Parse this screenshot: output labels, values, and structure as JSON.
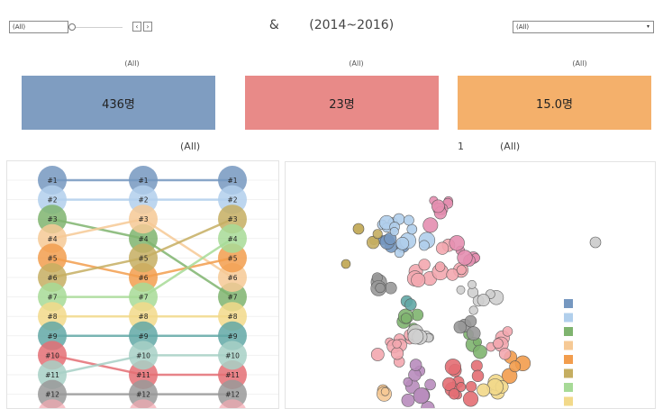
{
  "filters": {
    "left_filter_value": "(All)",
    "prev_icon": "chevron-left-icon",
    "next_icon": "chevron-right-icon",
    "dropdown_value": "(All)",
    "dropdown_arrow": "▾"
  },
  "header": {
    "title_left": "&",
    "title_right": "(2014~2016)"
  },
  "kpis": [
    {
      "label": "(All)",
      "value": "436명",
      "color": "#7f9dc1"
    },
    {
      "label": "(All)",
      "value": "23명",
      "color": "#e88a88"
    },
    {
      "label": "(All)",
      "value": "15.0명",
      "color": "#f4b06b"
    }
  ],
  "subheaders": {
    "bump_label": "(All)",
    "bubble_number": "1",
    "bubble_label": "(All)"
  },
  "palette": [
    "#7698c0",
    "#b1cfec",
    "#7fb46f",
    "#f6c995",
    "#f29d4d",
    "#c5ae61",
    "#a7da97",
    "#f2d98a",
    "#62a8a6",
    "#e46e74",
    "#a7d0c6",
    "#999999",
    "#f3a8b0"
  ],
  "chart_data": [
    {
      "type": "bump",
      "columns": 3,
      "rank_labels": [
        "#1",
        "#2",
        "#3",
        "#4",
        "#5",
        "#6",
        "#7",
        "#8",
        "#9",
        "#10",
        "#11",
        "#12"
      ],
      "series": [
        {
          "ranks": [
            1,
            1,
            1
          ]
        },
        {
          "ranks": [
            2,
            2,
            2
          ]
        },
        {
          "ranks": [
            3,
            4,
            7
          ]
        },
        {
          "ranks": [
            4,
            3,
            6
          ]
        },
        {
          "ranks": [
            5,
            6,
            5
          ]
        },
        {
          "ranks": [
            6,
            5,
            3
          ]
        },
        {
          "ranks": [
            7,
            7,
            4
          ]
        },
        {
          "ranks": [
            8,
            8,
            8
          ]
        },
        {
          "ranks": [
            9,
            9,
            9
          ]
        },
        {
          "ranks": [
            10,
            11,
            11
          ]
        },
        {
          "ranks": [
            11,
            10,
            10
          ]
        },
        {
          "ranks": [
            12,
            12,
            12
          ]
        }
      ]
    },
    {
      "type": "scatter",
      "clusters": [
        {
          "color": "#7698c0",
          "x": 433,
          "y": 265,
          "n": 5
        },
        {
          "color": "#b1cfec",
          "x": 440,
          "y": 255,
          "n": 14
        },
        {
          "color": "#7fb46f",
          "x": 457,
          "y": 350,
          "n": 5
        },
        {
          "color": "#f29d4d",
          "x": 566,
          "y": 405,
          "n": 4
        },
        {
          "color": "#f2d98a",
          "x": 550,
          "y": 428,
          "n": 5
        },
        {
          "color": "#7fb46f",
          "x": 526,
          "y": 381,
          "n": 4
        },
        {
          "color": "#c5ae61",
          "x": 413,
          "y": 268,
          "n": 3
        },
        {
          "color": "#f6c995",
          "x": 425,
          "y": 432,
          "n": 4
        },
        {
          "color": "#62a8a6",
          "x": 451,
          "y": 334,
          "n": 2
        },
        {
          "color": "#999999",
          "x": 420,
          "y": 318,
          "n": 5
        },
        {
          "color": "#999999",
          "x": 515,
          "y": 360,
          "n": 4
        },
        {
          "color": "#f3a8b0",
          "x": 490,
          "y": 300,
          "n": 12
        },
        {
          "color": "#f3a8b0",
          "x": 440,
          "y": 380,
          "n": 10
        },
        {
          "color": "#e46e74",
          "x": 505,
          "y": 425,
          "n": 12
        },
        {
          "color": "#b98cbd",
          "x": 460,
          "y": 430,
          "n": 10
        },
        {
          "color": "#e58fb1",
          "x": 490,
          "y": 230,
          "n": 8
        },
        {
          "color": "#e58fb1",
          "x": 515,
          "y": 285,
          "n": 6
        },
        {
          "color": "#d0d0d0",
          "x": 530,
          "y": 330,
          "n": 8
        },
        {
          "color": "#d0d0d0",
          "x": 470,
          "y": 370,
          "n": 6
        },
        {
          "color": "#f3a8b0",
          "x": 560,
          "y": 380,
          "n": 6
        }
      ],
      "outliers": [
        {
          "color": "#c5ae61",
          "x": 383,
          "y": 292,
          "r": 5
        },
        {
          "color": "#d0d0d0",
          "x": 660,
          "y": 268,
          "r": 6
        },
        {
          "color": "#c5ae61",
          "x": 397,
          "y": 253,
          "r": 6
        }
      ],
      "legend": {
        "colors": [
          "#7698c0",
          "#b1cfec",
          "#7fb46f",
          "#f6c995",
          "#f29d4d",
          "#c5ae61",
          "#a7da97",
          "#f2d98a",
          "#62a8a6"
        ]
      }
    }
  ]
}
